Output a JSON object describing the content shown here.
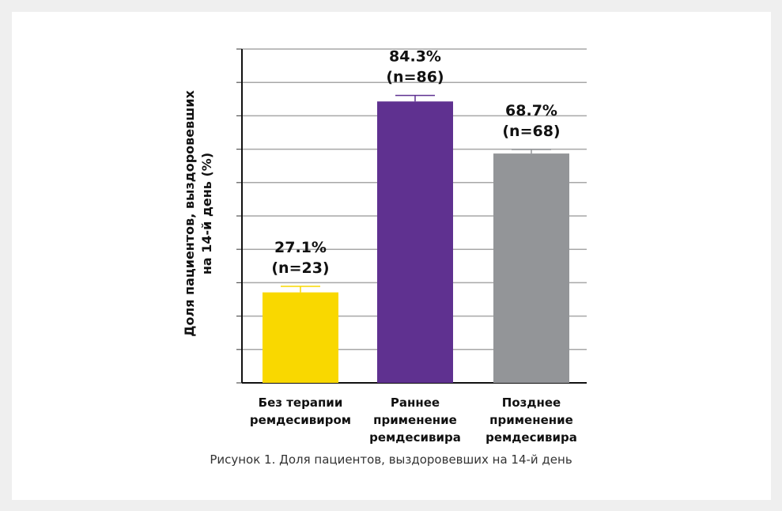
{
  "chart_data": {
    "type": "bar",
    "title": "",
    "ylabel": "Доля пациентов, выздоровевших на 14-й день (%)",
    "ylabel_lines": [
      "Доля пациентов, выздоровевших",
      "на 14-й день (%)"
    ],
    "xlabel": "",
    "ylim": [
      0,
      100
    ],
    "ytick_step": 10,
    "grid": true,
    "categories": [
      [
        "Без терапии",
        "ремдесивиром"
      ],
      [
        "Раннее",
        "применение",
        "ремдесивира"
      ],
      [
        "Позднее",
        "применение",
        "ремдесивира"
      ]
    ],
    "values": [
      27.1,
      84.3,
      68.7
    ],
    "error_upper": [
      28.9,
      86.1,
      69.9
    ],
    "labels": [
      [
        "27.1%",
        "(n=23)"
      ],
      [
        "84.3%",
        "(n=86)"
      ],
      [
        "68.7%",
        "(n=68)"
      ]
    ],
    "colors": [
      "#f9d800",
      "#5f3190",
      "#939598"
    ]
  },
  "caption": "Рисунок 1. Доля пациентов, выздоровевших на 14-й день"
}
